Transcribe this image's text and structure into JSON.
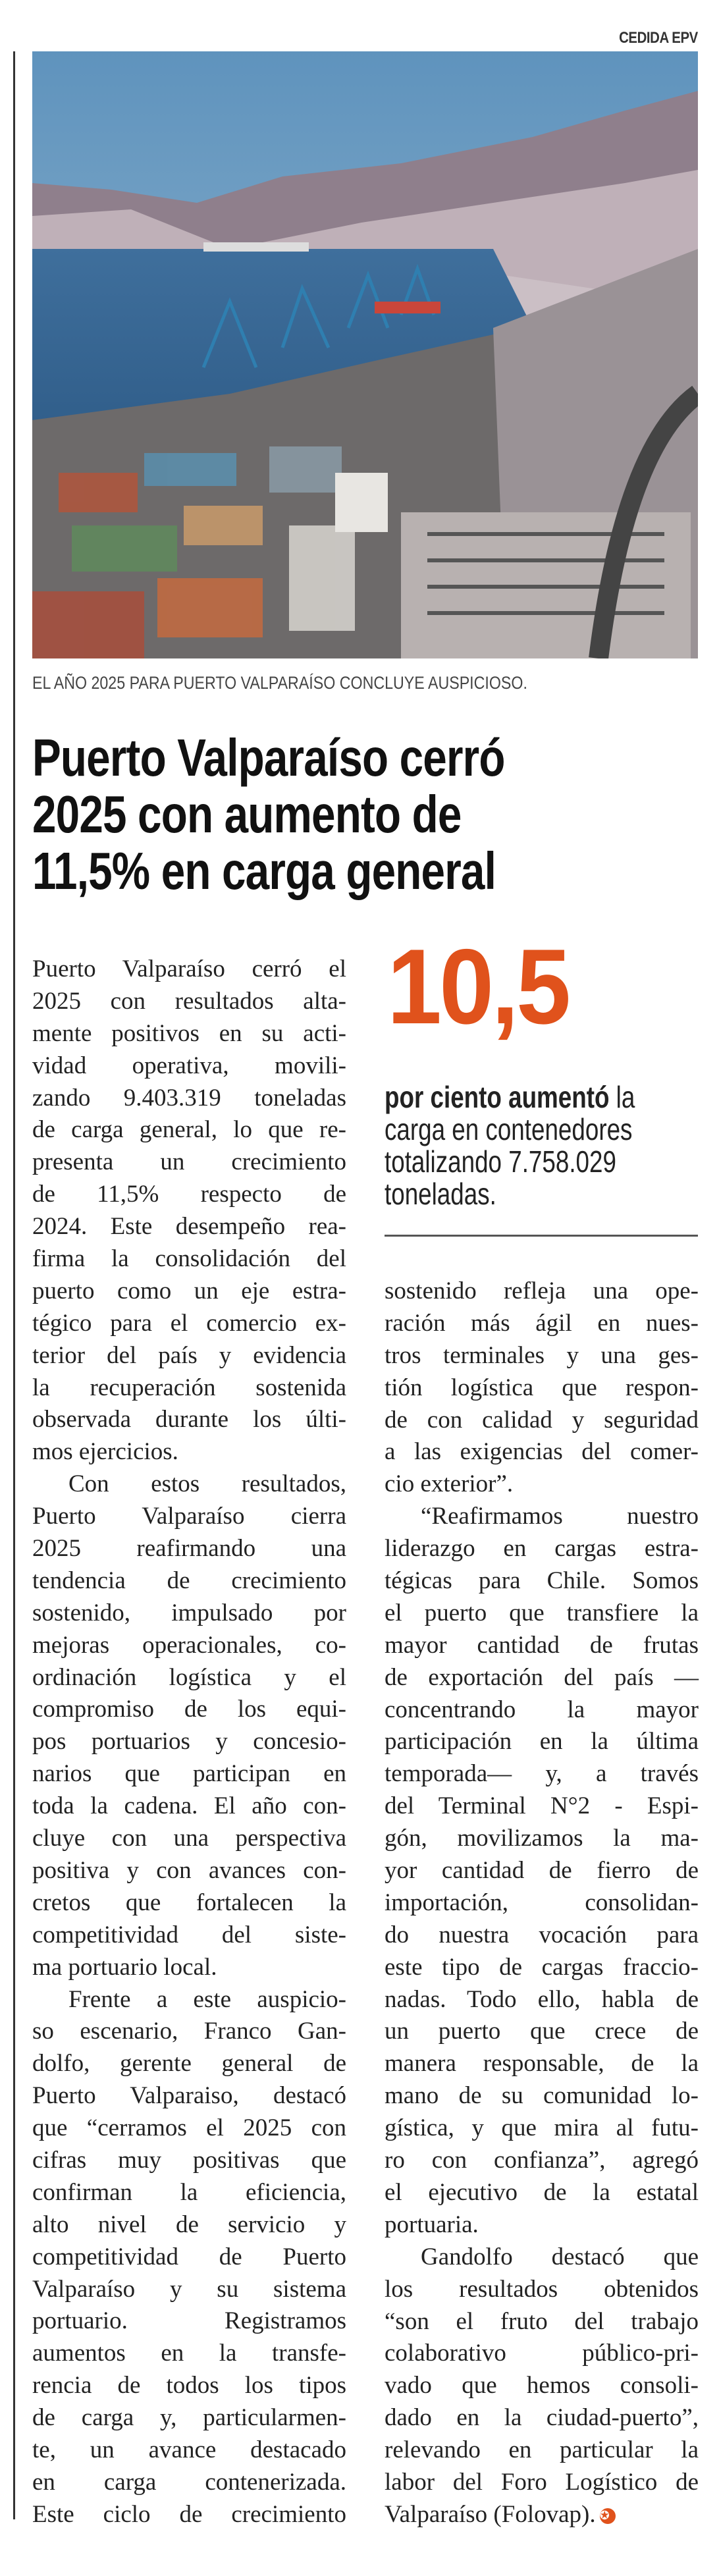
{
  "photo_credit": "CEDIDA EPV",
  "photo": {
    "icon": "harbor-aerial-photo"
  },
  "caption": "EL AÑO 2025 PARA PUERTO VALPARAÍSO CONCLUYE AUSPICIOSO.",
  "headline": [
    "Puerto Valparaíso cerró",
    "2025 con aumento de",
    "11,5% en carga general"
  ],
  "stat": {
    "number": "10,5",
    "bold": "por ciento aumentó",
    "line1_rest": " la",
    "lines": [
      "carga en contenedores",
      "totalizando 7.758.029",
      "toneladas."
    ],
    "accent_color": "#e0521c"
  },
  "columns": {
    "left": [
      {
        "indent": false,
        "lines": [
          "Puerto Valparaíso cerró el",
          "2025 con resultados alta-",
          "mente positivos en su acti-",
          "vidad operativa, movili-",
          "zando 9.403.319 toneladas",
          "de carga general, lo que re-",
          "presenta un crecimiento",
          "de 11,5% respecto de",
          "2024. Este desempeño rea-",
          "firma la consolidación del",
          "puerto como un eje estra-",
          "tégico para el comercio ex-",
          "terior del país y evidencia",
          "la recuperación sostenida",
          "observada durante los últi-",
          "mos ejercicios."
        ]
      },
      {
        "indent": true,
        "lines": [
          "Con estos resultados,",
          "Puerto Valparaíso cierra",
          "2025 reafirmando una",
          "tendencia de crecimiento",
          "sostenido, impulsado por",
          "mejoras operacionales, co-",
          "ordinación logística y el",
          "compromiso de los equi-",
          "pos portuarios y concesio-",
          "narios que participan en",
          "toda la cadena. El año con-",
          "cluye con una perspectiva",
          "positiva y con avances con-",
          "cretos que fortalecen la",
          "competitividad del siste-",
          "ma portuario local."
        ]
      },
      {
        "indent": true,
        "continues": true,
        "lines": [
          "Frente a este auspicio-",
          "so escenario, Franco Gan-",
          "dolfo, gerente general de",
          "Puerto Valparaiso, destacó",
          "que “cerramos el 2025 con",
          "cifras muy positivas que",
          "confirman la eficiencia,",
          "alto nivel de servicio y",
          "competitividad de Puerto",
          "Valparaíso y su sistema",
          "portuario. Registramos",
          "aumentos en la transfe-",
          "rencia de todos los tipos",
          "de carga y, particularmen-",
          "te, un avance destacado",
          "en carga contenerizada.",
          "Este ciclo de crecimiento"
        ]
      }
    ],
    "right": [
      {
        "indent": false,
        "lines": [
          "sostenido refleja una ope-",
          "ración más ágil en nues-",
          "tros terminales y una ges-",
          "tión logística que respon-",
          "de con calidad y seguridad",
          "a las exigencias del comer-",
          "cio exterior”."
        ]
      },
      {
        "indent": true,
        "lines": [
          "“Reafirmamos nuestro",
          "liderazgo en cargas estra-",
          "tégicas para Chile. Somos",
          "el puerto que transfiere la",
          "mayor cantidad de frutas",
          "de exportación del país —",
          "concentrando la mayor",
          "participación en la última",
          "temporada— y, a través",
          "del Terminal N°2 - Espi-",
          "gón, movilizamos la ma-",
          "yor cantidad de fierro de",
          "importación, consolidan-",
          "do nuestra vocación para",
          "este tipo de cargas fraccio-",
          "nadas. Todo ello, habla de",
          "un puerto que crece de",
          "manera responsable, de la",
          "mano de su comunidad lo-",
          "gística, y que mira al futu-",
          "ro con confianza”, agregó",
          "el ejecutivo de la estatal",
          "portuaria."
        ]
      },
      {
        "indent": true,
        "end_mark": "end-of-article-icon",
        "lines": [
          "Gandolfo destacó que",
          "los resultados obtenidos",
          "“son el fruto del trabajo",
          "colaborativo público-pri-",
          "vado que hemos consoli-",
          "dado en la ciudad-puerto”,",
          "relevando en particular la",
          "labor del Foro Logístico de",
          "Valparaíso (Folovap)."
        ]
      }
    ]
  }
}
